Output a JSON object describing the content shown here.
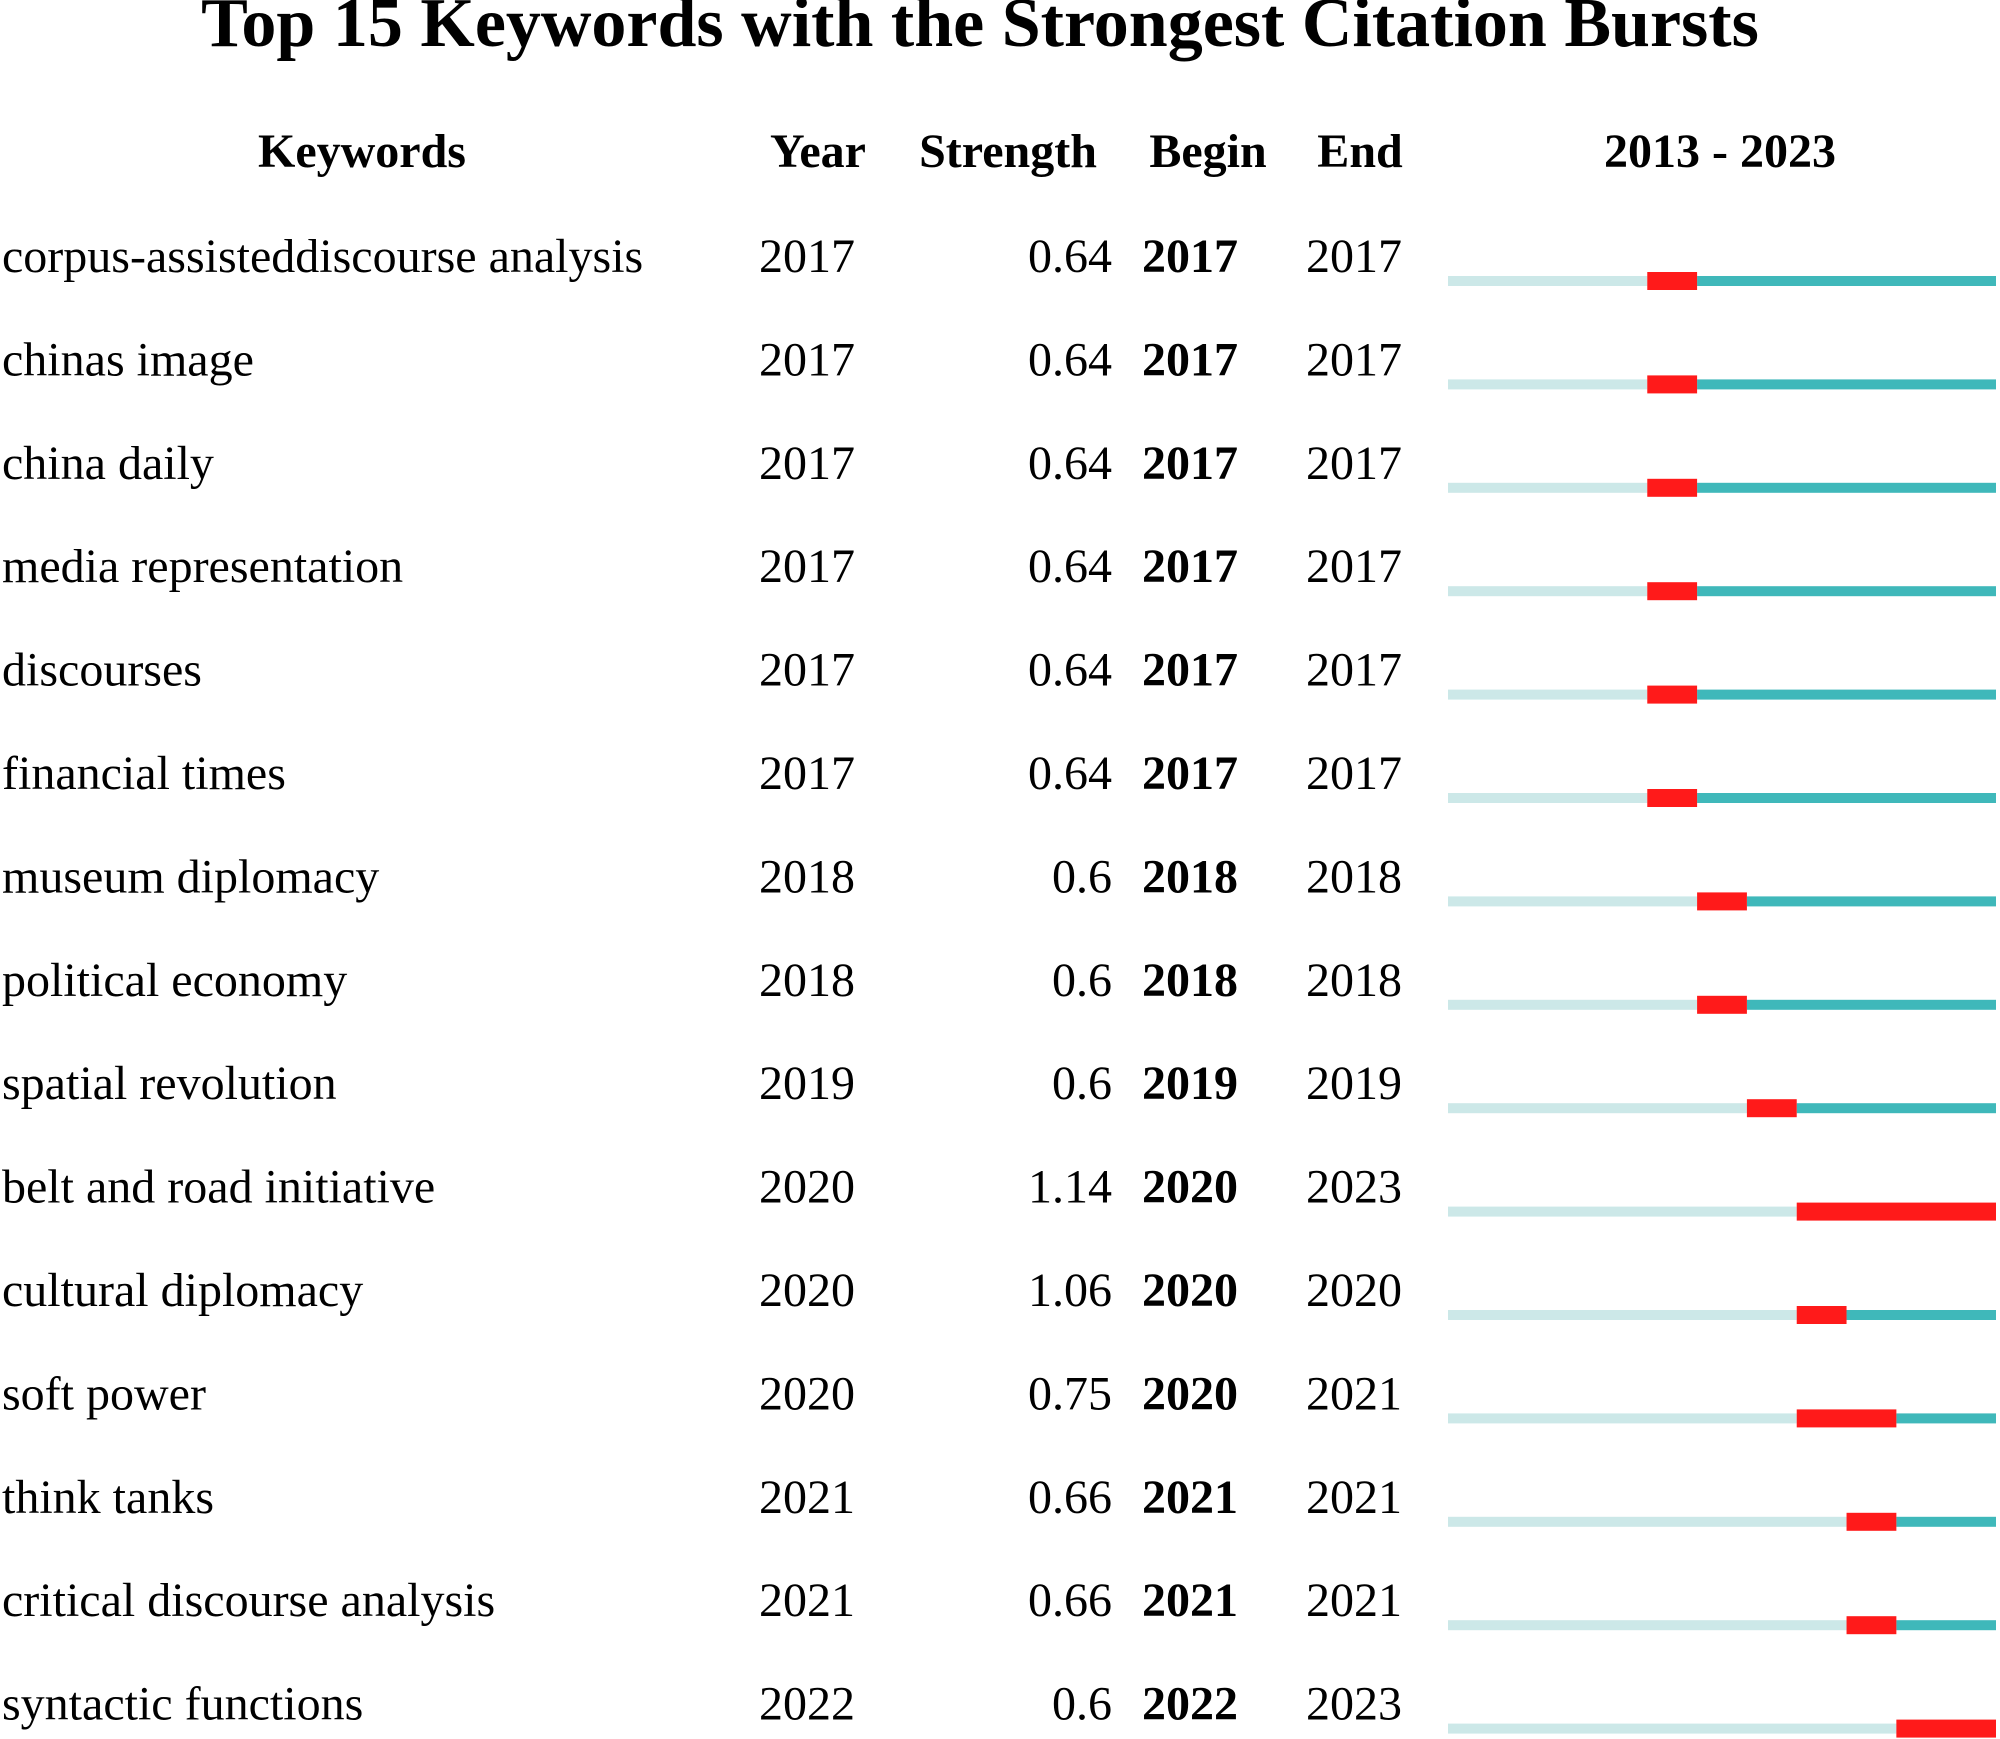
{
  "title": "Top 15 Keywords with the Strongest Citation Bursts",
  "table": {
    "columns": [
      "Keywords",
      "Year",
      "Strength",
      "Begin",
      "End",
      "2013 - 2023"
    ],
    "timeline": [
      2013,
      2023
    ],
    "rows": [
      [
        "corpus-assisteddiscourse analysis",
        2017,
        0.64,
        2017,
        2017
      ],
      [
        "chinas image",
        2017,
        0.64,
        2017,
        2017
      ],
      [
        "china daily",
        2017,
        0.64,
        2017,
        2017
      ],
      [
        "media representation",
        2017,
        0.64,
        2017,
        2017
      ],
      [
        "discourses",
        2017,
        0.64,
        2017,
        2017
      ],
      [
        "financial times",
        2017,
        0.64,
        2017,
        2017
      ],
      [
        "museum diplomacy",
        2018,
        0.6,
        2018,
        2018
      ],
      [
        "political economy",
        2018,
        0.6,
        2018,
        2018
      ],
      [
        "spatial revolution",
        2019,
        0.6,
        2019,
        2019
      ],
      [
        "belt and road initiative",
        2020,
        1.14,
        2020,
        2023
      ],
      [
        "cultural diplomacy",
        2020,
        1.06,
        2020,
        2020
      ],
      [
        "soft power",
        2020,
        0.75,
        2020,
        2021
      ],
      [
        "think tanks",
        2021,
        0.66,
        2021,
        2021
      ],
      [
        "critical discourse analysis",
        2021,
        0.66,
        2021,
        2021
      ],
      [
        "syntactic functions",
        2022,
        0.6,
        2022,
        2023
      ]
    ]
  }
}
